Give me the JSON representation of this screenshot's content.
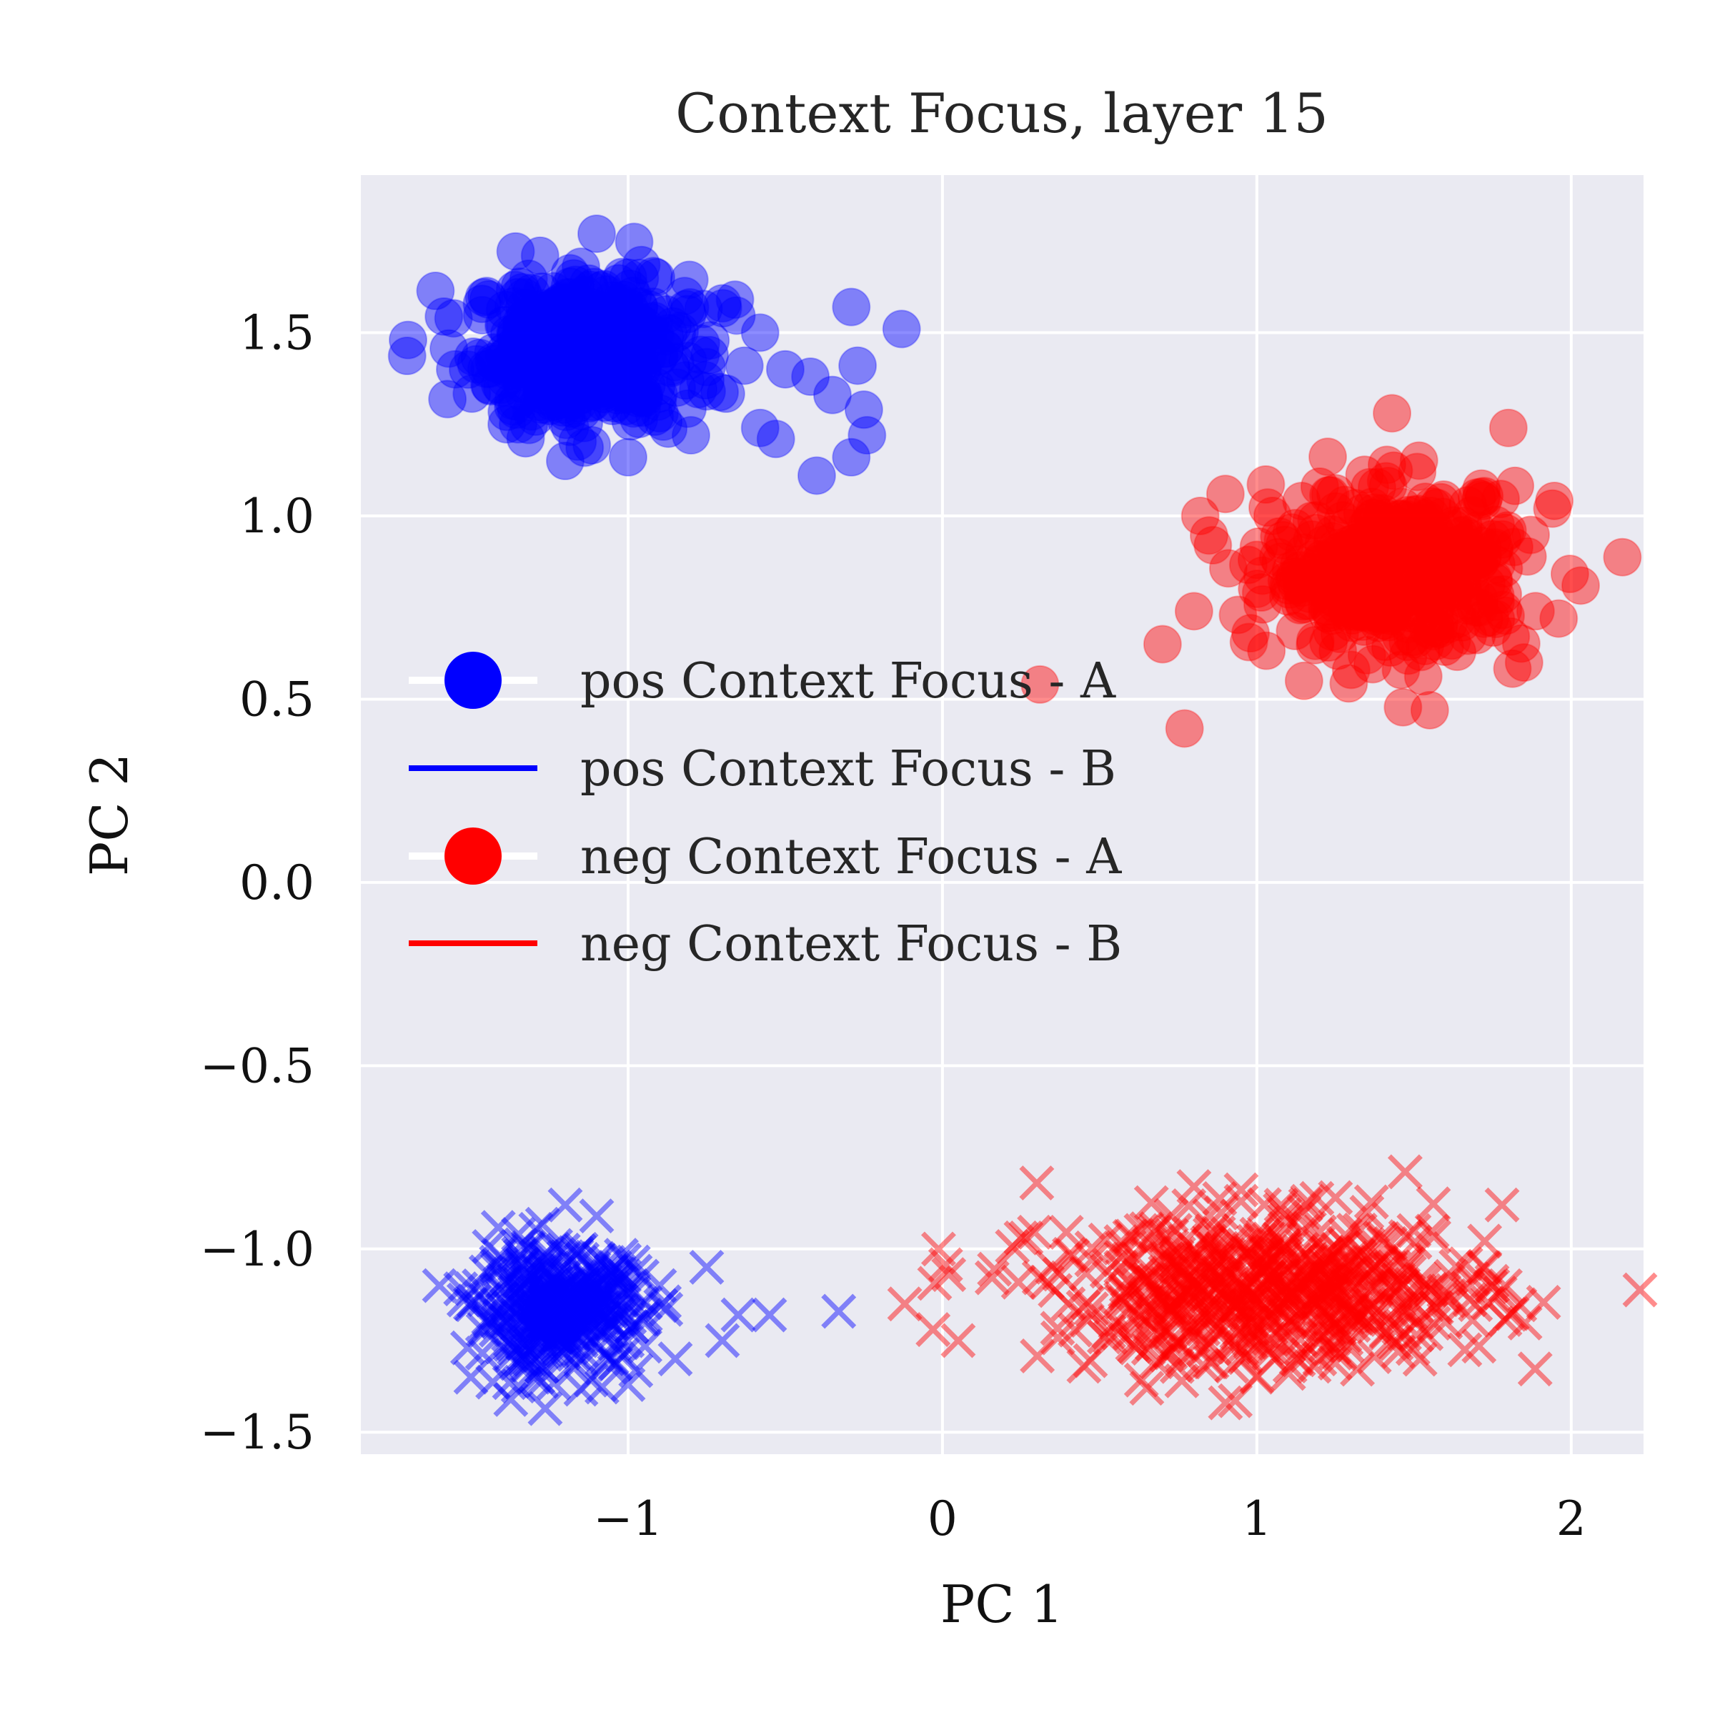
{
  "chart_data": {
    "type": "scatter",
    "title": "Context Focus, layer 15",
    "xlabel": "PC 1",
    "ylabel": "PC 2",
    "xlim": [
      -1.85,
      2.23
    ],
    "ylim": [
      -1.56,
      1.93
    ],
    "xticks": [
      -1,
      0,
      1,
      2
    ],
    "xtick_labels": [
      "−1",
      "0",
      "1",
      "2"
    ],
    "yticks": [
      -1.5,
      -1.0,
      -0.5,
      0.0,
      0.5,
      1.0,
      1.5
    ],
    "ytick_labels": [
      "−1.5",
      "−1.0",
      "−0.5",
      "0.0",
      "0.5",
      "1.0",
      "1.5"
    ],
    "grid": true,
    "background": "#eaeaf2",
    "legend_position": "center-left",
    "series": [
      {
        "name": "pos Context Focus - A",
        "marker": "circle",
        "color": "#0000ff",
        "alpha": 0.45,
        "points": [
          [
            -1.7,
            1.48
          ],
          [
            -1.28,
            1.71
          ],
          [
            -1.1,
            1.77
          ],
          [
            -0.82,
            1.6
          ],
          [
            -0.66,
            1.59
          ],
          [
            -0.58,
            1.5
          ],
          [
            -0.5,
            1.4
          ],
          [
            -0.42,
            1.38
          ],
          [
            -0.35,
            1.33
          ],
          [
            -0.29,
            1.57
          ],
          [
            -0.27,
            1.41
          ],
          [
            -0.25,
            1.29
          ],
          [
            -0.24,
            1.22
          ],
          [
            -0.29,
            1.16
          ],
          [
            -0.4,
            1.11
          ],
          [
            -0.53,
            1.21
          ],
          [
            -0.58,
            1.24
          ],
          [
            -0.63,
            1.41
          ],
          [
            -0.13,
            1.51
          ],
          [
            -0.75,
            1.34
          ],
          [
            -0.8,
            1.22
          ],
          [
            -1.0,
            1.16
          ],
          [
            -1.2,
            1.15
          ],
          [
            -1.35,
            1.25
          ],
          [
            -1.55,
            1.4
          ],
          [
            -1.45,
            1.6
          ],
          [
            -1.15,
            1.68
          ],
          [
            -1.0,
            1.65
          ],
          [
            -0.9,
            1.28
          ],
          [
            -0.7,
            1.58
          ],
          [
            -1.25,
            1.3
          ],
          [
            -0.95,
            1.52
          ],
          [
            -0.85,
            1.42
          ],
          [
            -1.4,
            1.35
          ],
          [
            -1.05,
            1.3
          ]
        ],
        "cluster": {
          "cx": -1.15,
          "cy": 1.45,
          "sx": 0.17,
          "sy": 0.1,
          "n": 420
        }
      },
      {
        "name": "pos Context Focus - B",
        "marker": "x",
        "color": "#0000ff",
        "alpha": 0.45,
        "points": [
          [
            -1.6,
            -1.1
          ],
          [
            -1.5,
            -1.35
          ],
          [
            -1.2,
            -0.88
          ],
          [
            -1.1,
            -0.91
          ],
          [
            -0.75,
            -1.05
          ],
          [
            -0.7,
            -1.25
          ],
          [
            -0.65,
            -1.18
          ],
          [
            -0.55,
            -1.18
          ],
          [
            -0.33,
            -1.17
          ],
          [
            -0.85,
            -1.3
          ],
          [
            -1.0,
            -1.37
          ],
          [
            -1.3,
            -1.35
          ],
          [
            -1.45,
            -1.2
          ],
          [
            -0.9,
            -1.1
          ],
          [
            -1.15,
            -1.3
          ]
        ],
        "cluster": {
          "cx": -1.22,
          "cy": -1.17,
          "sx": 0.13,
          "sy": 0.08,
          "n": 380
        }
      },
      {
        "name": "neg Context Focus - A",
        "marker": "circle",
        "color": "#ff0000",
        "alpha": 0.45,
        "points": [
          [
            0.31,
            0.54
          ],
          [
            0.77,
            0.42
          ],
          [
            0.7,
            0.65
          ],
          [
            0.8,
            0.74
          ],
          [
            0.82,
            1.0
          ],
          [
            0.9,
            1.06
          ],
          [
            0.86,
            0.92
          ],
          [
            1.0,
            0.88
          ],
          [
            1.05,
            1.0
          ],
          [
            1.43,
            1.28
          ],
          [
            1.51,
            1.12
          ],
          [
            1.8,
            1.24
          ],
          [
            1.94,
            1.02
          ],
          [
            2.03,
            0.81
          ],
          [
            1.96,
            0.72
          ],
          [
            1.55,
            0.47
          ],
          [
            1.3,
            0.58
          ],
          [
            1.15,
            0.55
          ],
          [
            0.98,
            0.68
          ],
          [
            1.7,
            1.05
          ],
          [
            1.85,
            0.6
          ],
          [
            1.2,
            1.08
          ],
          [
            1.35,
            0.62
          ],
          [
            1.1,
            0.78
          ],
          [
            1.62,
            0.66
          ]
        ],
        "cluster": {
          "cx": 1.45,
          "cy": 0.85,
          "sx": 0.2,
          "sy": 0.11,
          "n": 440
        }
      },
      {
        "name": "neg Context Focus - B",
        "marker": "x",
        "color": "#ff0000",
        "alpha": 0.45,
        "points": [
          [
            -0.12,
            -1.15
          ],
          [
            -0.03,
            -1.22
          ],
          [
            0.02,
            -1.07
          ],
          [
            0.05,
            -1.25
          ],
          [
            0.3,
            -0.82
          ],
          [
            0.25,
            -0.97
          ],
          [
            0.35,
            -1.05
          ],
          [
            0.45,
            -1.32
          ],
          [
            0.8,
            -0.83
          ],
          [
            0.85,
            -0.91
          ],
          [
            0.95,
            -0.87
          ],
          [
            1.0,
            -0.96
          ],
          [
            1.15,
            -0.9
          ],
          [
            1.25,
            -0.86
          ],
          [
            1.35,
            -0.9
          ],
          [
            1.5,
            -0.95
          ],
          [
            1.78,
            -0.88
          ],
          [
            1.72,
            -1.05
          ],
          [
            1.75,
            -1.1
          ],
          [
            0.65,
            -1.38
          ],
          [
            0.9,
            -1.42
          ],
          [
            1.0,
            -1.35
          ],
          [
            1.2,
            -1.3
          ],
          [
            1.45,
            -1.28
          ],
          [
            0.55,
            -1.2
          ],
          [
            0.4,
            -1.15
          ],
          [
            1.6,
            -1.2
          ]
        ],
        "cluster": {
          "cx": 1.05,
          "cy": -1.12,
          "sx": 0.35,
          "sy": 0.1,
          "n": 560
        }
      }
    ],
    "legend": [
      {
        "label": "pos Context Focus - A",
        "color": "#0000ff",
        "style": "marker"
      },
      {
        "label": "pos Context Focus - B",
        "color": "#0000ff",
        "style": "line"
      },
      {
        "label": "neg Context Focus - A",
        "color": "#ff0000",
        "style": "marker"
      },
      {
        "label": "neg Context Focus - B",
        "color": "#ff0000",
        "style": "line"
      }
    ]
  }
}
